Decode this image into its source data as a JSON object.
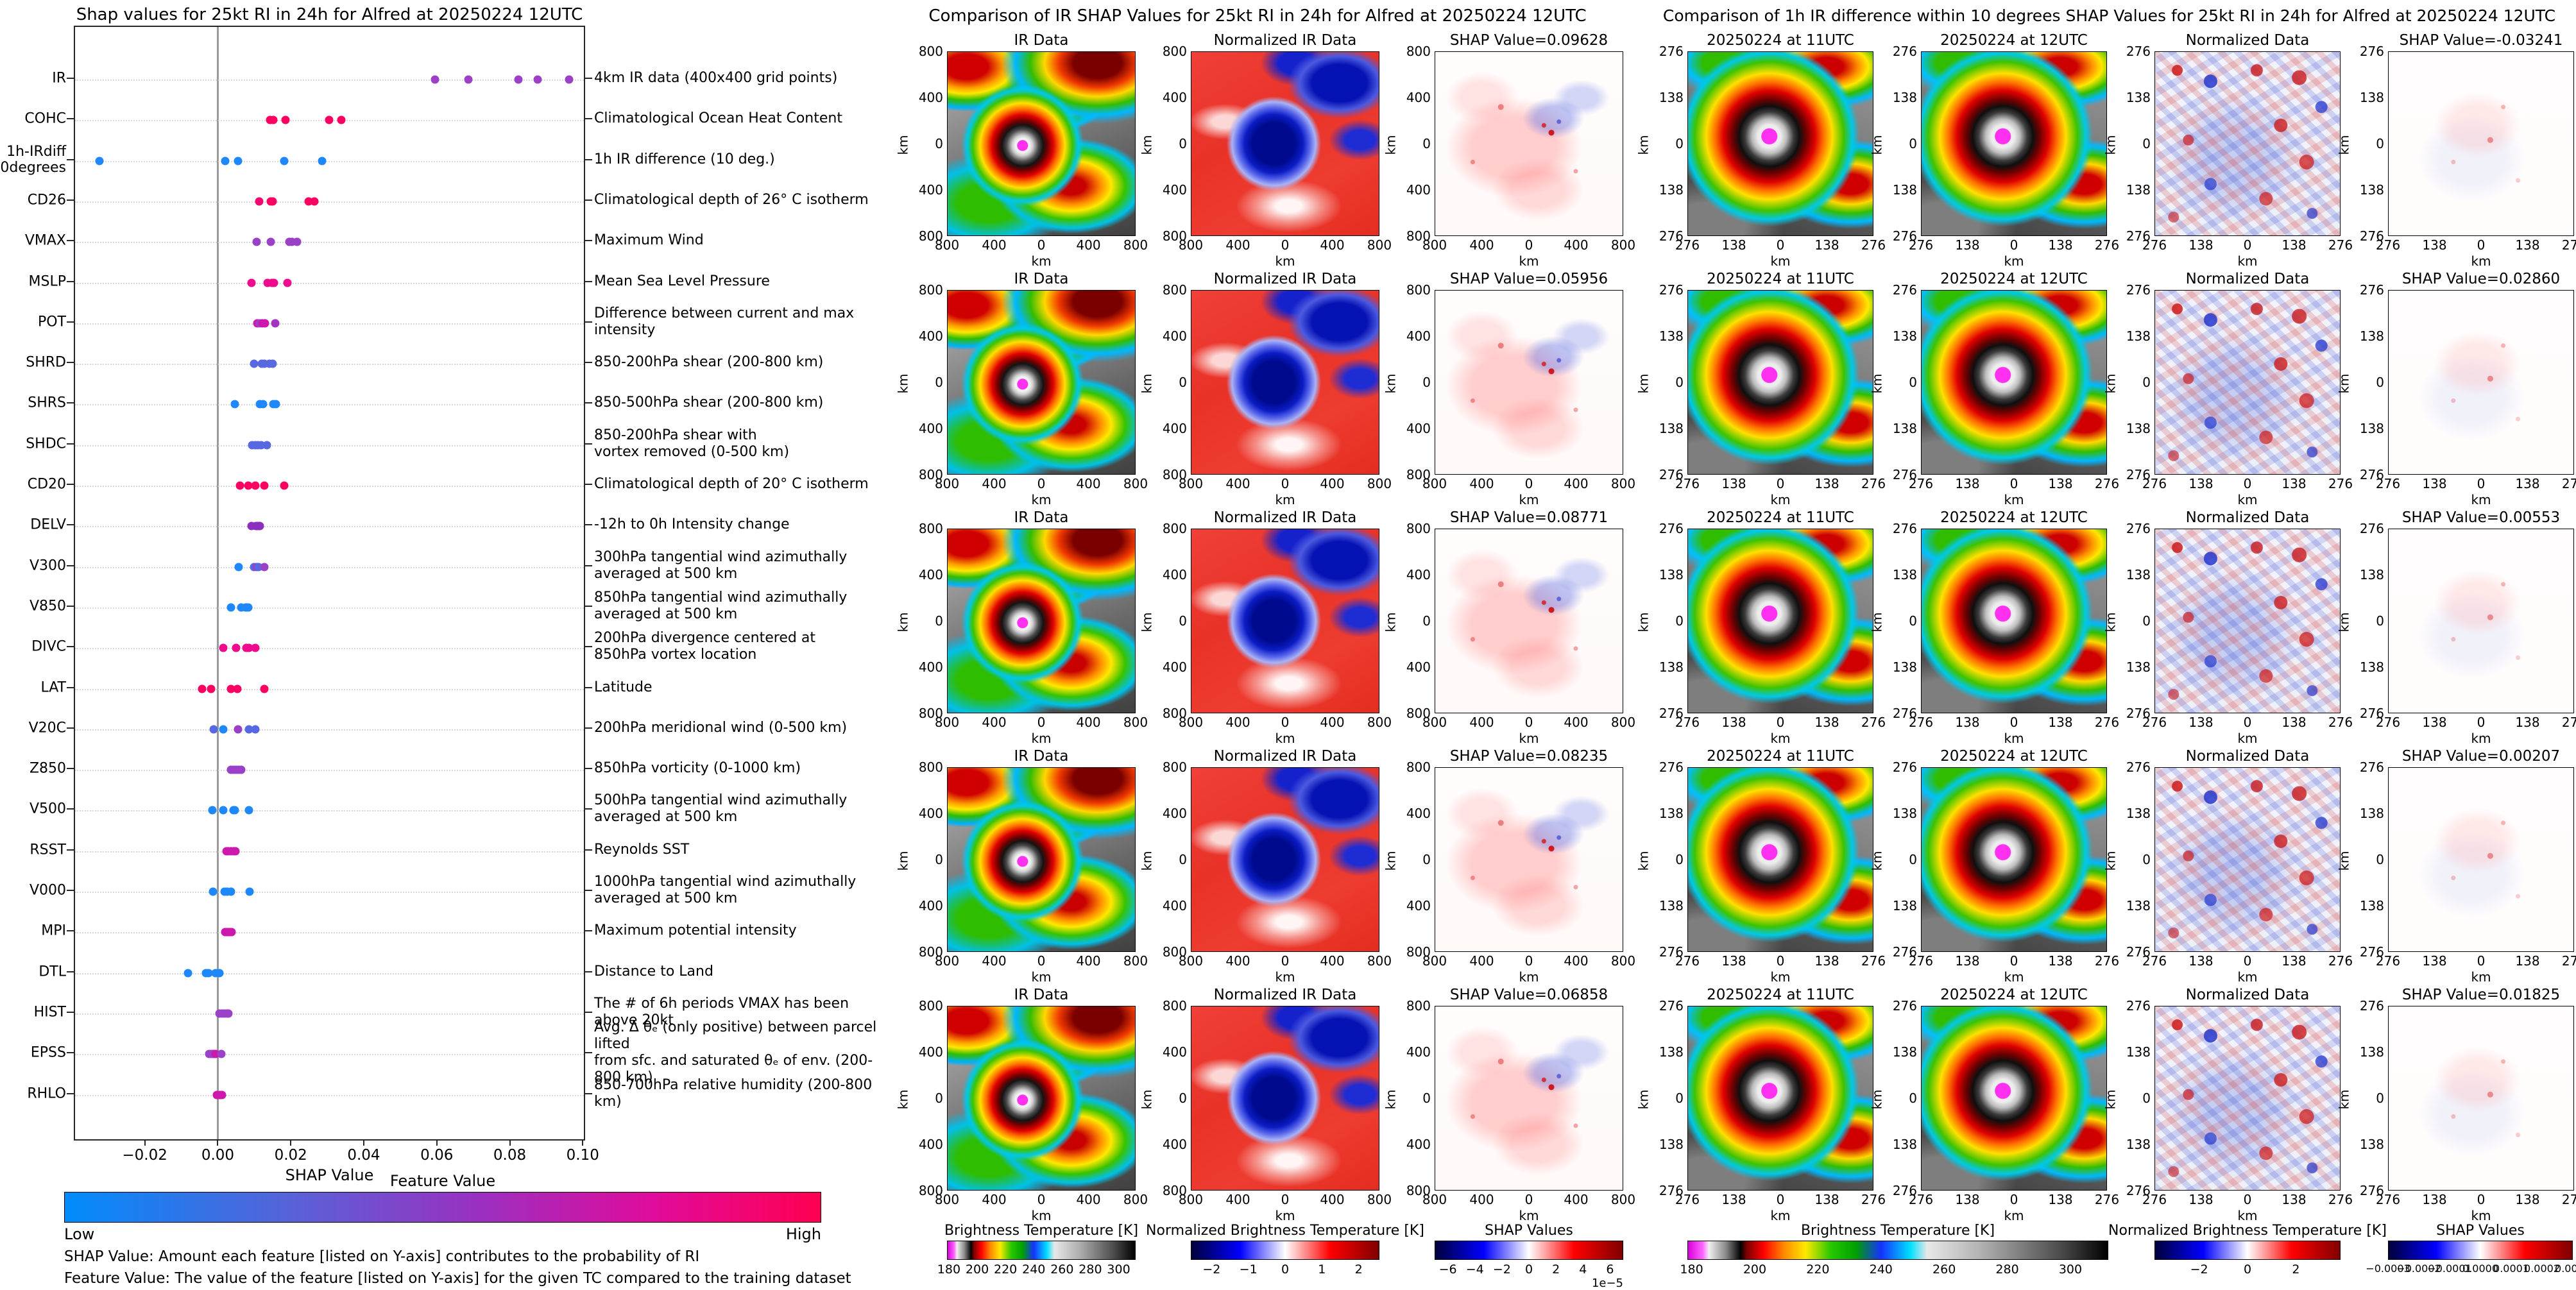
{
  "chart_data": [
    {
      "type": "scatter",
      "title": "Shap values for 25kt RI in 24h for Alfred at 20250224 12UTC",
      "xlabel": "SHAP Value",
      "xlim": [
        -0.0391,
        0.1003
      ],
      "x_ticks": [
        -0.02,
        0.0,
        0.02,
        0.04,
        0.06,
        0.08,
        0.1
      ],
      "x_tick_labels": [
        "−0.02",
        "0.00",
        "0.02",
        "0.04",
        "0.06",
        "0.08",
        "0.10"
      ],
      "grid": "dotted-horizontal",
      "legend_position": "bottom",
      "colorbar": {
        "title": "Feature Value",
        "low_label": "Low",
        "high_label": "High",
        "low_color": "#008bfb",
        "high_color": "#ff0051"
      },
      "footnotes": [
        "SHAP Value: Amount each feature [listed on Y-axis] contributes to the probability of RI",
        "Feature Value: The value of the feature [listed on Y-axis] for the given TC compared to the training dataset"
      ],
      "features": [
        {
          "code": "IR",
          "desc": "4km IR data (400x400 grid points)",
          "dots": [
            {
              "v": 0.05956,
              "c": "#9b41c8"
            },
            {
              "v": 0.06858,
              "c": "#9b41c8"
            },
            {
              "v": 0.08235,
              "c": "#9b41c8"
            },
            {
              "v": 0.08771,
              "c": "#9b41c8"
            },
            {
              "v": 0.09628,
              "c": "#9b41c8"
            }
          ]
        },
        {
          "code": "COHC",
          "desc": "Climatological Ocean Heat Content",
          "dots": [
            {
              "v": 0.0143,
              "c": "#fb0262"
            },
            {
              "v": 0.0152,
              "c": "#fb0262"
            },
            {
              "v": 0.0185,
              "c": "#fb0262"
            },
            {
              "v": 0.0305,
              "c": "#fb0262"
            },
            {
              "v": 0.0338,
              "c": "#fb0262"
            }
          ]
        },
        {
          "code": "1h-IRdiff\n10degrees",
          "desc": "1h IR difference (10 deg.)",
          "dots": [
            {
              "v": -0.03241,
              "c": "#1e88fb"
            },
            {
              "v": 0.00207,
              "c": "#1e88fb"
            },
            {
              "v": 0.00553,
              "c": "#1e88fb"
            },
            {
              "v": 0.01825,
              "c": "#1e88fb"
            },
            {
              "v": 0.0286,
              "c": "#1e88fb"
            }
          ]
        },
        {
          "code": "CD26",
          "desc": "Climatological depth of 26° C isotherm",
          "dots": [
            {
              "v": 0.0114,
              "c": "#f2066f"
            },
            {
              "v": 0.0145,
              "c": "#fb0262"
            },
            {
              "v": 0.015,
              "c": "#fb0262"
            },
            {
              "v": 0.0249,
              "c": "#fb0262"
            },
            {
              "v": 0.0264,
              "c": "#fb0262"
            }
          ]
        },
        {
          "code": "VMAX",
          "desc": "Maximum Wind",
          "dots": [
            {
              "v": 0.0107,
              "c": "#9b41c8"
            },
            {
              "v": 0.0145,
              "c": "#9b41c8"
            },
            {
              "v": 0.0196,
              "c": "#9b41c8"
            },
            {
              "v": 0.0204,
              "c": "#9b41c8"
            },
            {
              "v": 0.0218,
              "c": "#9b41c8"
            }
          ]
        },
        {
          "code": "MSLP",
          "desc": "Mean Sea Level Pressure",
          "dots": [
            {
              "v": 0.0092,
              "c": "#ef0b8d"
            },
            {
              "v": 0.0136,
              "c": "#ef0b8d"
            },
            {
              "v": 0.0148,
              "c": "#ef0b8d"
            },
            {
              "v": 0.0154,
              "c": "#ef0b8d"
            },
            {
              "v": 0.0191,
              "c": "#ef0b8d"
            }
          ]
        },
        {
          "code": "POT",
          "desc": "Difference between current and max intensity",
          "dots": [
            {
              "v": 0.0108,
              "c": "#cd18ae"
            },
            {
              "v": 0.0116,
              "c": "#9b41c8"
            },
            {
              "v": 0.0123,
              "c": "#cd18ae"
            },
            {
              "v": 0.013,
              "c": "#cd18ae"
            },
            {
              "v": 0.0158,
              "c": "#a432c2"
            }
          ]
        },
        {
          "code": "SHRD",
          "desc": "850-200hPa shear (200-800 km)",
          "dots": [
            {
              "v": 0.0099,
              "c": "#5868e0"
            },
            {
              "v": 0.0121,
              "c": "#5868e0"
            },
            {
              "v": 0.0127,
              "c": "#5868e0"
            },
            {
              "v": 0.0141,
              "c": "#5868e0"
            },
            {
              "v": 0.015,
              "c": "#5868e0"
            }
          ]
        },
        {
          "code": "SHRS",
          "desc": "850-500hPa shear (200-800 km)",
          "dots": [
            {
              "v": 0.0046,
              "c": "#1e88fb"
            },
            {
              "v": 0.0116,
              "c": "#1e88fb"
            },
            {
              "v": 0.0124,
              "c": "#1e88fb"
            },
            {
              "v": 0.0152,
              "c": "#1e88fb"
            },
            {
              "v": 0.016,
              "c": "#1e88fb"
            }
          ]
        },
        {
          "code": "SHDC",
          "desc": "850-200hPa shear with\nvortex removed (0-500 km)",
          "dots": [
            {
              "v": 0.0094,
              "c": "#5868e0"
            },
            {
              "v": 0.0103,
              "c": "#5868e0"
            },
            {
              "v": 0.011,
              "c": "#5868e0"
            },
            {
              "v": 0.0119,
              "c": "#5868e0"
            },
            {
              "v": 0.0134,
              "c": "#5868e0"
            }
          ]
        },
        {
          "code": "CD20",
          "desc": "Climatological depth of 20° C isotherm",
          "dots": [
            {
              "v": 0.0061,
              "c": "#fb0262"
            },
            {
              "v": 0.0084,
              "c": "#fb0262"
            },
            {
              "v": 0.0103,
              "c": "#fb0262"
            },
            {
              "v": 0.0127,
              "c": "#fb0262"
            },
            {
              "v": 0.0182,
              "c": "#fb0262"
            }
          ]
        },
        {
          "code": "DELV",
          "desc": "-12h to 0h Intensity change",
          "dots": [
            {
              "v": 0.0092,
              "c": "#8c2fbe"
            },
            {
              "v": 0.0104,
              "c": "#8c2fbe"
            },
            {
              "v": 0.0109,
              "c": "#8c2fbe"
            },
            {
              "v": 0.0113,
              "c": "#8c2fbe"
            },
            {
              "v": 0.0116,
              "c": "#8c2fbe"
            }
          ]
        },
        {
          "code": "V300",
          "desc": "300hPa tangential wind azimuthally\naveraged at 500 km",
          "dots": [
            {
              "v": 0.0057,
              "c": "#1e88fb"
            },
            {
              "v": 0.0099,
              "c": "#5868e0"
            },
            {
              "v": 0.0107,
              "c": "#9b41c8"
            },
            {
              "v": 0.0112,
              "c": "#5868e0"
            },
            {
              "v": 0.0128,
              "c": "#9b41c8"
            }
          ]
        },
        {
          "code": "V850",
          "desc": "850hPa tangential wind azimuthally\naveraged at 500 km",
          "dots": [
            {
              "v": 0.0037,
              "c": "#1e88fb"
            },
            {
              "v": 0.0065,
              "c": "#1e88fb"
            },
            {
              "v": 0.0076,
              "c": "#1e88fb"
            },
            {
              "v": 0.0078,
              "c": "#1e88fb"
            },
            {
              "v": 0.0083,
              "c": "#1e88fb"
            }
          ]
        },
        {
          "code": "DIVC",
          "desc": "200hPa divergence centered at\n850hPa vortex location",
          "dots": [
            {
              "v": 0.0015,
              "c": "#ef0b8d"
            },
            {
              "v": 0.0051,
              "c": "#ef0b8d"
            },
            {
              "v": 0.0079,
              "c": "#ef0b8d"
            },
            {
              "v": 0.0086,
              "c": "#ef0b8d"
            },
            {
              "v": 0.0103,
              "c": "#ef0b8d"
            }
          ]
        },
        {
          "code": "LAT",
          "desc": "Latitude",
          "dots": [
            {
              "v": -0.0043,
              "c": "#fb0262"
            },
            {
              "v": -0.0018,
              "c": "#fb0262"
            },
            {
              "v": 0.0037,
              "c": "#fb0262"
            },
            {
              "v": 0.0053,
              "c": "#fb0262"
            },
            {
              "v": 0.0128,
              "c": "#fb0262"
            }
          ]
        },
        {
          "code": "V20C",
          "desc": "200hPa meridional wind (0-500 km)",
          "dots": [
            {
              "v": -0.0012,
              "c": "#5868e0"
            },
            {
              "v": 0.0015,
              "c": "#1e88fb"
            },
            {
              "v": 0.0055,
              "c": "#9b41c8"
            },
            {
              "v": 0.0086,
              "c": "#5868e0"
            },
            {
              "v": 0.0103,
              "c": "#5868e0"
            }
          ]
        },
        {
          "code": "Z850",
          "desc": "850hPa vorticity (0-1000 km)",
          "dots": [
            {
              "v": 0.0036,
              "c": "#9b41c8"
            },
            {
              "v": 0.0044,
              "c": "#9b41c8"
            },
            {
              "v": 0.0051,
              "c": "#9b41c8"
            },
            {
              "v": 0.0057,
              "c": "#9b41c8"
            },
            {
              "v": 0.0065,
              "c": "#9b41c8"
            }
          ]
        },
        {
          "code": "V500",
          "desc": "500hPa tangential wind azimuthally\naveraged at 500 km",
          "dots": [
            {
              "v": -0.0014,
              "c": "#1e88fb"
            },
            {
              "v": 0.0015,
              "c": "#1e88fb"
            },
            {
              "v": 0.0044,
              "c": "#1e88fb"
            },
            {
              "v": 0.0046,
              "c": "#1e88fb"
            },
            {
              "v": 0.0086,
              "c": "#1e88fb"
            }
          ]
        },
        {
          "code": "RSST",
          "desc": "Reynolds SST",
          "dots": [
            {
              "v": 0.0023,
              "c": "#cd18ae"
            },
            {
              "v": 0.003,
              "c": "#cd18ae"
            },
            {
              "v": 0.0037,
              "c": "#cd18ae"
            },
            {
              "v": 0.0044,
              "c": "#cd18ae"
            },
            {
              "v": 0.0048,
              "c": "#cd18ae"
            }
          ]
        },
        {
          "code": "V000",
          "desc": "1000hPa tangential wind azimuthally\naveraged at 500 km",
          "dots": [
            {
              "v": -0.0013,
              "c": "#1e88fb"
            },
            {
              "v": 0.0018,
              "c": "#1e88fb"
            },
            {
              "v": 0.0025,
              "c": "#1e88fb"
            },
            {
              "v": 0.0036,
              "c": "#1e88fb"
            },
            {
              "v": 0.0088,
              "c": "#1e88fb"
            }
          ]
        },
        {
          "code": "MPI",
          "desc": "Maximum potential intensity",
          "dots": [
            {
              "v": 0.0021,
              "c": "#cd18ae"
            },
            {
              "v": 0.0026,
              "c": "#cd18ae"
            },
            {
              "v": 0.003,
              "c": "#cd18ae"
            },
            {
              "v": 0.0035,
              "c": "#cd18ae"
            },
            {
              "v": 0.0038,
              "c": "#cd18ae"
            }
          ]
        },
        {
          "code": "DTL",
          "desc": "Distance to Land",
          "dots": [
            {
              "v": -0.0081,
              "c": "#1e88fb"
            },
            {
              "v": -0.0032,
              "c": "#1e88fb"
            },
            {
              "v": -0.0026,
              "c": "#1e88fb"
            },
            {
              "v": -0.0006,
              "c": "#1e88fb"
            },
            {
              "v": 0.0005,
              "c": "#1e88fb"
            }
          ]
        },
        {
          "code": "HIST",
          "desc": "The # of 6h periods VMAX has been above 20kt",
          "dots": [
            {
              "v": 0.0005,
              "c": "#9b41c8"
            },
            {
              "v": 0.0011,
              "c": "#9b41c8"
            },
            {
              "v": 0.0018,
              "c": "#9b41c8"
            },
            {
              "v": 0.0025,
              "c": "#9b41c8"
            },
            {
              "v": 0.003,
              "c": "#9b41c8"
            }
          ]
        },
        {
          "code": "EPSS",
          "desc": "Avg. Δ θₑ (only positive) between parcel lifted\nfrom sfc. and saturated θₑ of env. (200-800 km)",
          "dots": [
            {
              "v": -0.0023,
              "c": "#9b41c8"
            },
            {
              "v": -0.0017,
              "c": "#9b41c8"
            },
            {
              "v": -0.0011,
              "c": "#9b41c8"
            },
            {
              "v": -0.0006,
              "c": "#cd18ae"
            },
            {
              "v": 0.001,
              "c": "#9b41c8"
            }
          ]
        },
        {
          "code": "RHLO",
          "desc": "850-700hPa relative humidity (200-800 km)",
          "dots": [
            {
              "v": -0.0002,
              "c": "#cd18ae"
            },
            {
              "v": 0.0002,
              "c": "#cd18ae"
            },
            {
              "v": 0.0006,
              "c": "#cd18ae"
            },
            {
              "v": 0.001,
              "c": "#cd18ae"
            },
            {
              "v": 0.0012,
              "c": "#cd18ae"
            }
          ]
        }
      ]
    },
    {
      "type": "heatmap",
      "title": "Comparison of IR SHAP Values for 25kt RI in 24h for Alfred at 20250224 12UTC",
      "columns": [
        {
          "title": "IR Data",
          "tile": "ir"
        },
        {
          "title": "Normalized IR Data",
          "tile": "normir"
        },
        {
          "title": null,
          "tile": "shapfaint"
        }
      ],
      "rows": [
        {
          "shap_label": "SHAP Value=0.09628"
        },
        {
          "shap_label": "SHAP Value=0.05956"
        },
        {
          "shap_label": "SHAP Value=0.08771"
        },
        {
          "shap_label": "SHAP Value=0.08235"
        },
        {
          "shap_label": "SHAP Value=0.06858"
        }
      ],
      "y_ticks": [
        "800",
        "400",
        "0",
        "400",
        "800"
      ],
      "x_ticks": [
        "800",
        "400",
        "0",
        "400",
        "800"
      ],
      "axis_unit": "km",
      "colorbars": [
        {
          "title": "Brightness Temperature [K]",
          "ticks": [
            "180",
            "200",
            "220",
            "240",
            "260",
            "280",
            "300"
          ],
          "style": "ir-enhancement"
        },
        {
          "title": "Normalized Brightness Temperature [K]",
          "ticks": [
            "−2",
            "−1",
            "0",
            "1",
            "2"
          ],
          "style": "seismic"
        },
        {
          "title": "SHAP Values",
          "ticks": [
            "−6",
            "−4",
            "−2",
            "0",
            "2",
            "4",
            "6"
          ],
          "style": "seismic",
          "exponent": "1e−5"
        }
      ]
    },
    {
      "type": "heatmap",
      "title": "Comparison of 1h IR difference within 10 degrees SHAP Values for 25kt RI in 24h for Alfred at 20250224 12UTC",
      "columns": [
        {
          "title": "20250224 at 11UTC",
          "tile": "ir2"
        },
        {
          "title": "20250224 at 12UTC",
          "tile": "ir2"
        },
        {
          "title": "Normalized Data",
          "tile": "diffnorm"
        },
        {
          "title": null,
          "tile": "shapvfaint"
        }
      ],
      "rows": [
        {
          "shap_label": "SHAP Value=-0.03241"
        },
        {
          "shap_label": "SHAP Value=0.02860"
        },
        {
          "shap_label": "SHAP Value=0.00553"
        },
        {
          "shap_label": "SHAP Value=0.00207"
        },
        {
          "shap_label": "SHAP Value=0.01825"
        }
      ],
      "y_ticks": [
        "276",
        "138",
        "0",
        "138",
        "276"
      ],
      "x_ticks": [
        "276",
        "138",
        "0",
        "138",
        "276"
      ],
      "axis_unit": "km",
      "colorbars": [
        {
          "title": "Brightness Temperature [K]",
          "ticks": [
            "180",
            "200",
            "220",
            "240",
            "260",
            "280",
            "300"
          ],
          "style": "ir-enhancement",
          "span": 2
        },
        {
          "title": "Normalized Brightness Temperature [K]",
          "ticks": [
            "−2",
            "0",
            "2"
          ],
          "style": "seismic"
        },
        {
          "title": "SHAP Values",
          "ticks": [
            "−0.0003",
            "−0.0002",
            "−0.0001",
            "0.0000",
            "0.0001",
            "0.0002",
            "0.0003"
          ],
          "style": "seismic"
        }
      ]
    }
  ]
}
